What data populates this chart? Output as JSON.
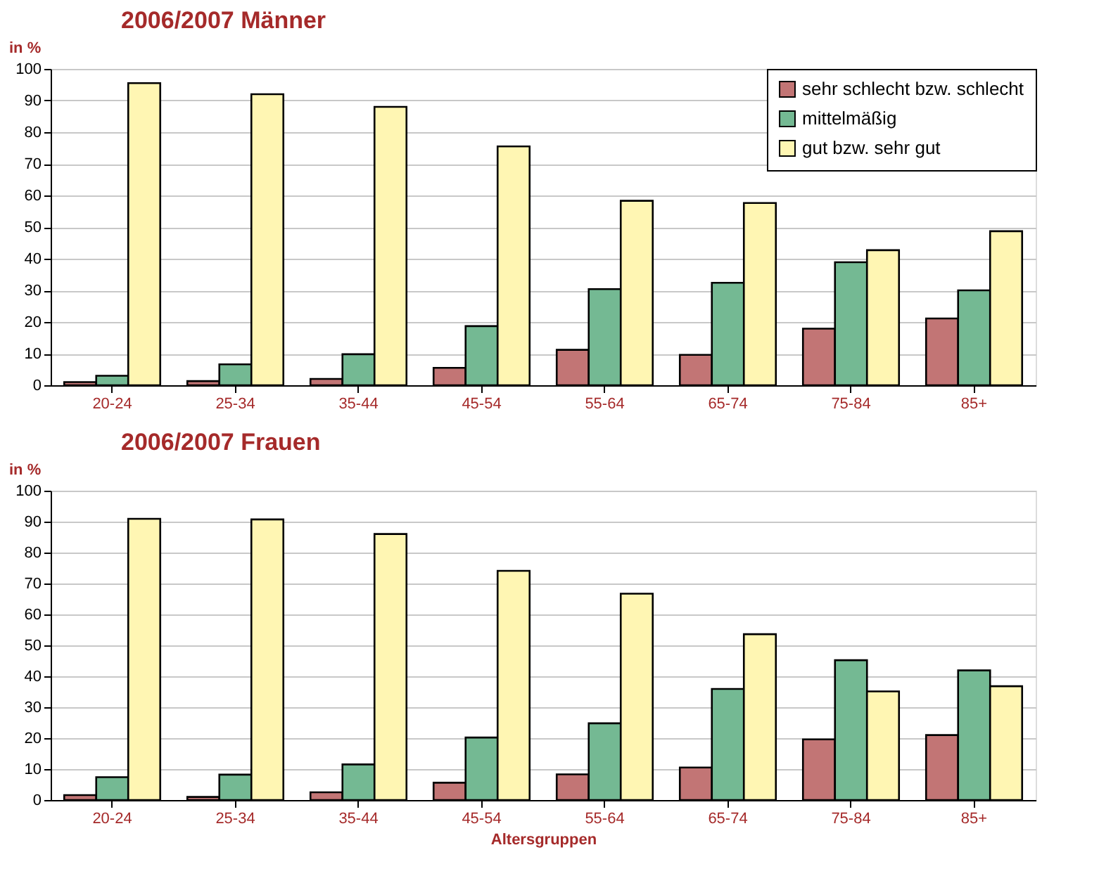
{
  "chart_data": [
    {
      "type": "bar",
      "title": "2006/2007   Männer",
      "ylabel": "in %",
      "categories": [
        "20-24",
        "25-34",
        "35-44",
        "45-54",
        "55-64",
        "65-74",
        "75-84",
        "85+"
      ],
      "series": [
        {
          "name": "sehr schlecht bzw. schlecht",
          "color": "#c27575",
          "values": [
            1,
            1.3,
            2,
            5.5,
            11.2,
            9.6,
            17.9,
            21.1
          ]
        },
        {
          "name": "mittelmäßig",
          "color": "#74b993",
          "values": [
            3,
            6.6,
            9.8,
            18.7,
            30.4,
            32.4,
            38.9,
            30
          ]
        },
        {
          "name": "gut bzw. sehr gut",
          "color": "#fff6b3",
          "values": [
            95.5,
            92,
            88,
            75.5,
            58.3,
            57.6,
            42.7,
            48.7
          ]
        }
      ],
      "ylim": [
        0,
        100
      ],
      "yticks": [
        0,
        10,
        20,
        30,
        40,
        50,
        60,
        70,
        80,
        90,
        100
      ],
      "grid": "y",
      "legend": "top right"
    },
    {
      "type": "bar",
      "title": "2006/2007   Frauen",
      "ylabel": "in %",
      "xlabel": "Altersgruppen",
      "categories": [
        "20-24",
        "25-34",
        "35-44",
        "45-54",
        "55-64",
        "65-74",
        "75-84",
        "85+"
      ],
      "series": [
        {
          "name": "sehr schlecht bzw. schlecht",
          "color": "#c27575",
          "values": [
            1.6,
            1,
            2.5,
            5.6,
            8.3,
            10.5,
            19.6,
            21
          ]
        },
        {
          "name": "mittelmäßig",
          "color": "#74b993",
          "values": [
            7.4,
            8.2,
            11.5,
            20.2,
            24.8,
            35.9,
            45.2,
            41.9
          ]
        },
        {
          "name": "gut bzw. sehr gut",
          "color": "#fff6b3",
          "values": [
            90.9,
            90.7,
            86,
            74.1,
            66.7,
            53.6,
            35.1,
            36.8
          ]
        }
      ],
      "ylim": [
        0,
        100
      ],
      "yticks": [
        0,
        10,
        20,
        30,
        40,
        50,
        60,
        70,
        80,
        90,
        100
      ],
      "grid": "y",
      "legend": false
    }
  ]
}
